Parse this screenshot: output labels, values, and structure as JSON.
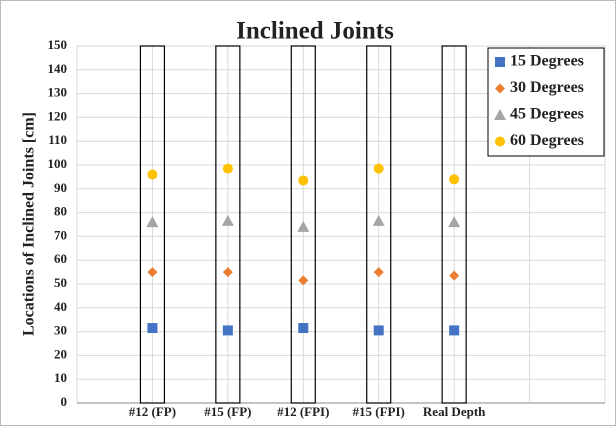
{
  "chart_data": {
    "type": "scatter",
    "title": "Inclined Joints",
    "y_label": "Locations of Inclined Joints [cm]",
    "categories": [
      "#12 (FP)",
      "#15 (FP)",
      "#12 (FPI)",
      "#15 (FPI)",
      "Real Depth"
    ],
    "series": [
      {
        "name": "15 Degrees",
        "color": "#4472c4",
        "marker": "square",
        "values": [
          31.5,
          30.5,
          31.5,
          30.5,
          30.5
        ]
      },
      {
        "name": "30 Degrees",
        "color": "#ed7d31",
        "marker": "diamond",
        "values": [
          55,
          55,
          51.5,
          55,
          53.5
        ]
      },
      {
        "name": "45 Degrees",
        "color": "#a5a5a5",
        "marker": "triangle",
        "values": [
          76,
          76.5,
          74,
          76.5,
          76
        ]
      },
      {
        "name": "60 Degrees",
        "color": "#ffc000",
        "marker": "circle",
        "values": [
          96,
          98.5,
          93.5,
          98.5,
          94
        ]
      }
    ],
    "ylim": [
      0,
      150
    ],
    "yticks": [
      0,
      10,
      20,
      30,
      40,
      50,
      60,
      70,
      80,
      90,
      100,
      110,
      120,
      130,
      140,
      150
    ],
    "grid": true,
    "legend": "top-right"
  }
}
